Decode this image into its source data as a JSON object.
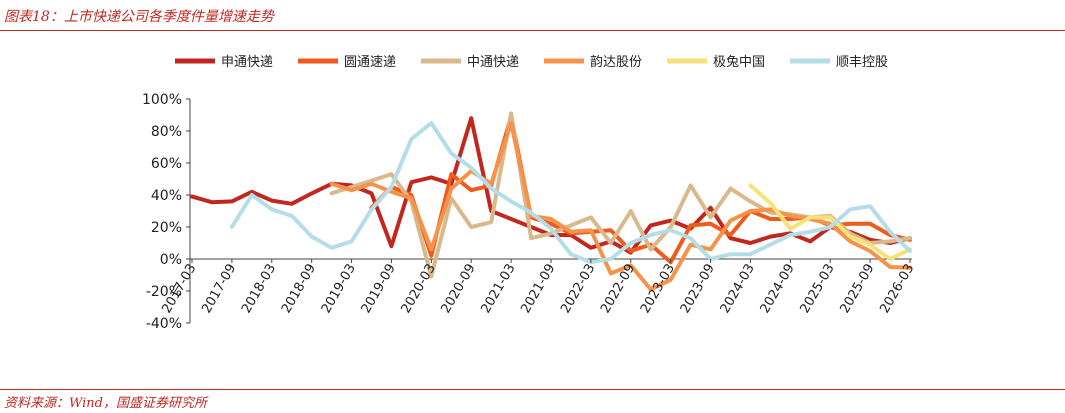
{
  "figure": {
    "title": "图表18：上市快递公司各季度件量增速走势",
    "source": "资料来源：Wind，国盛证券研究所"
  },
  "chart_data": {
    "type": "line",
    "ylim": [
      -0.4,
      1.0
    ],
    "yticks": [
      -0.4,
      -0.2,
      0.0,
      0.2,
      0.4,
      0.6,
      0.8,
      1.0
    ],
    "ytick_labels": [
      "-40%",
      "-20%",
      "0%",
      "20%",
      "40%",
      "60%",
      "80%",
      "100%"
    ],
    "xtick_labels": [
      "2017-03",
      "2017-09",
      "2018-03",
      "2018-09",
      "2019-03",
      "2019-09",
      "2020-03",
      "2020-09",
      "2021-03",
      "2021-09",
      "2022-03",
      "2022-09",
      "2023-03",
      "2023-09",
      "2024-03",
      "2024-09",
      "2025-03",
      "2025-09",
      "2026-03"
    ],
    "legend_position": "top",
    "grid": false,
    "x": [
      "2017-03",
      "2017-06",
      "2017-09",
      "2017-12",
      "2018-03",
      "2018-06",
      "2018-09",
      "2018-12",
      "2019-03",
      "2019-06",
      "2019-09",
      "2019-12",
      "2020-03",
      "2020-06",
      "2020-09",
      "2020-12",
      "2021-03",
      "2021-06",
      "2021-09",
      "2021-12",
      "2022-03",
      "2022-06",
      "2022-09",
      "2022-12",
      "2023-03",
      "2023-06",
      "2023-09",
      "2023-12",
      "2024-03",
      "2024-06",
      "2024-09",
      "2024-12",
      "2025-03",
      "2025-06",
      "2025-09",
      "2025-12",
      "2026-03"
    ],
    "series": [
      {
        "name": "申通快递",
        "color": "#c0281f",
        "width": 4,
        "values": [
          0.39,
          0.355,
          0.36,
          0.42,
          0.365,
          0.345,
          0.41,
          0.47,
          0.46,
          0.41,
          0.08,
          0.48,
          0.51,
          0.47,
          0.88,
          0.3,
          0.25,
          0.2,
          0.15,
          0.15,
          0.07,
          0.11,
          0.04,
          0.21,
          0.24,
          0.19,
          0.32,
          0.13,
          0.1,
          0.14,
          0.16,
          0.11,
          0.2,
          0.17,
          0.12,
          0.1,
          0.13
        ]
      },
      {
        "name": "圆通速递",
        "color": "#f05a1a",
        "width": 4,
        "values": [
          null,
          null,
          null,
          null,
          null,
          null,
          null,
          null,
          null,
          0.32,
          0.45,
          0.4,
          0.02,
          0.53,
          0.43,
          0.46,
          0.89,
          0.26,
          0.22,
          0.16,
          0.17,
          0.18,
          0.05,
          0.09,
          -0.02,
          0.21,
          0.22,
          0.15,
          0.3,
          0.25,
          0.25,
          0.26,
          0.21,
          0.22,
          0.22,
          0.15,
          0.12
        ]
      },
      {
        "name": "中通快递",
        "color": "#d9b98c",
        "width": 4,
        "values": [
          null,
          null,
          null,
          null,
          null,
          null,
          null,
          0.41,
          0.45,
          0.49,
          0.53,
          0.36,
          -0.11,
          0.38,
          0.2,
          0.23,
          0.91,
          0.13,
          0.16,
          0.21,
          0.26,
          0.1,
          0.3,
          0.06,
          0.2,
          0.46,
          0.26,
          0.44,
          0.36,
          0.29,
          0.28,
          0.26,
          0.27,
          0.16,
          0.1,
          0.11,
          0.13
        ]
      },
      {
        "name": "韵达股份",
        "color": "#f5934a",
        "width": 4,
        "values": [
          null,
          null,
          null,
          null,
          null,
          null,
          null,
          0.47,
          0.43,
          0.47,
          0.42,
          0.38,
          0.06,
          0.44,
          0.55,
          0.47,
          0.85,
          0.27,
          0.25,
          0.17,
          0.18,
          -0.09,
          -0.04,
          -0.19,
          -0.13,
          0.09,
          0.06,
          0.24,
          0.3,
          0.31,
          0.27,
          0.25,
          0.22,
          0.11,
          0.05,
          -0.05,
          -0.055
        ]
      },
      {
        "name": "极兔中国",
        "color": "#f7e27a",
        "width": 4,
        "values": [
          null,
          null,
          null,
          null,
          null,
          null,
          null,
          null,
          null,
          null,
          null,
          null,
          null,
          null,
          null,
          null,
          null,
          null,
          null,
          null,
          null,
          null,
          null,
          null,
          null,
          null,
          null,
          null,
          0.46,
          0.35,
          0.19,
          0.26,
          0.26,
          0.14,
          0.09,
          0.0,
          0.06
        ]
      },
      {
        "name": "顺丰控股",
        "color": "#b5dde8",
        "width": 4,
        "values": [
          null,
          null,
          0.2,
          0.4,
          0.31,
          0.27,
          0.14,
          0.07,
          0.11,
          0.31,
          0.45,
          0.75,
          0.85,
          0.66,
          0.57,
          0.44,
          0.36,
          0.29,
          0.19,
          0.03,
          -0.02,
          0.0,
          0.1,
          0.15,
          0.18,
          0.13,
          0.0,
          0.03,
          0.03,
          0.09,
          0.15,
          0.17,
          0.2,
          0.31,
          0.33,
          0.17,
          0.05
        ]
      }
    ]
  }
}
